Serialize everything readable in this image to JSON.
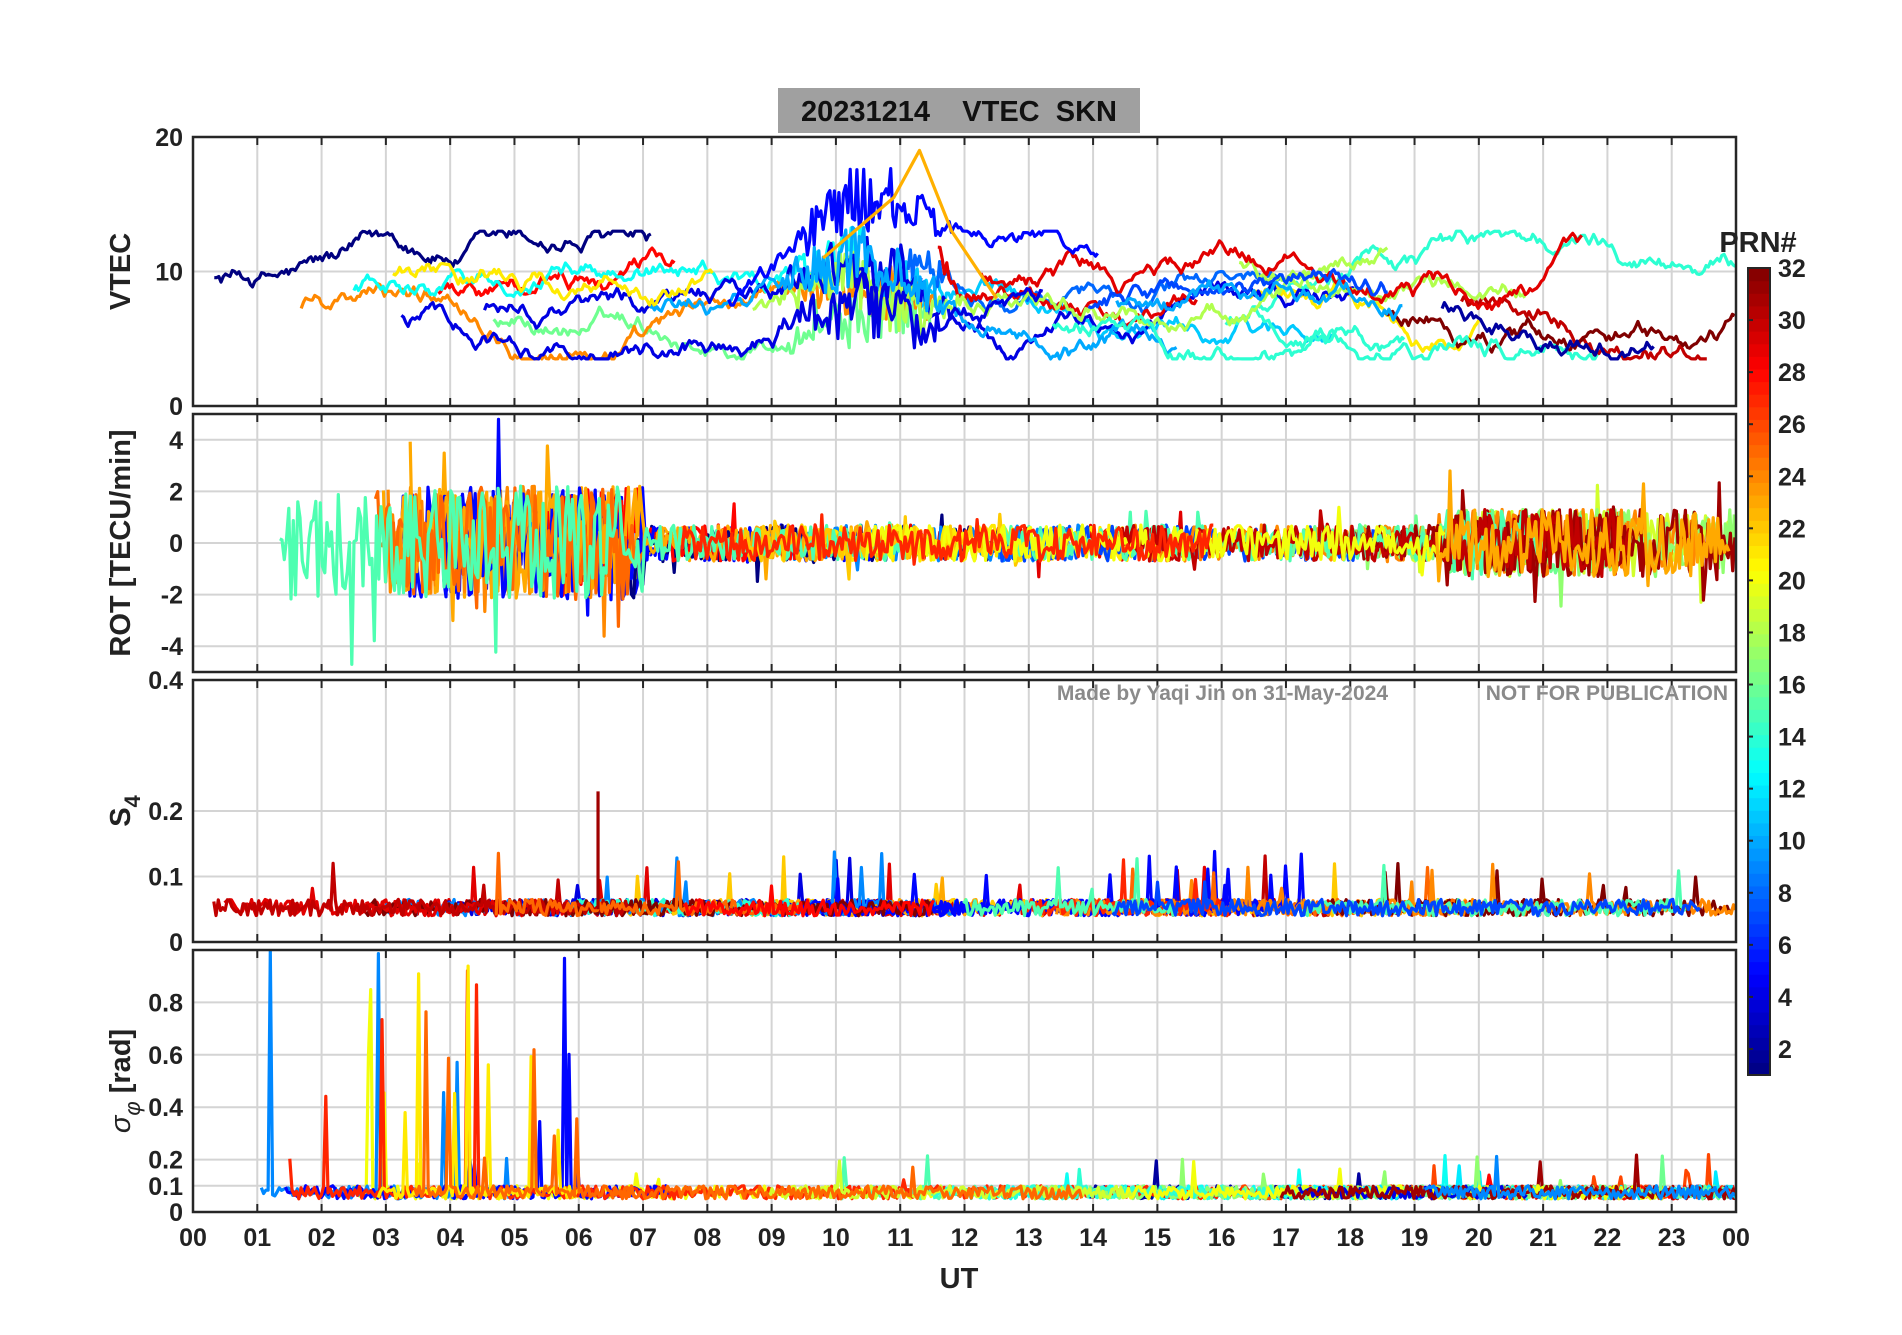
{
  "title": "20231214    VTEC  SKN",
  "watermark": {
    "left": "Made by Yaqi Jin on 31-May-2024",
    "right": "NOT FOR PUBLICATION"
  },
  "xlabel": "UT",
  "x_tick_labels": [
    "00",
    "01",
    "02",
    "03",
    "04",
    "05",
    "06",
    "07",
    "08",
    "09",
    "10",
    "11",
    "12",
    "13",
    "14",
    "15",
    "16",
    "17",
    "18",
    "19",
    "20",
    "21",
    "22",
    "23",
    "00"
  ],
  "colorbar": {
    "label": "PRN#",
    "range": [
      1,
      32
    ],
    "tick_labels": [
      "2",
      "4",
      "6",
      "8",
      "10",
      "12",
      "14",
      "16",
      "18",
      "20",
      "22",
      "24",
      "26",
      "28",
      "30",
      "32"
    ],
    "colormap": "jet"
  },
  "chart_data": [
    {
      "type": "line",
      "panel": "VTEC",
      "ylabel": "VTEC",
      "ylim": [
        0,
        20
      ],
      "y_tick_labels": [
        "0",
        "10",
        "20"
      ],
      "xlim_hours": [
        0,
        24
      ],
      "grid": true,
      "series_note_values": {
        "typical_range": [
          4,
          13
        ],
        "peak_value": 19,
        "peak_hour": 11.3
      }
    },
    {
      "type": "line",
      "panel": "ROT",
      "ylabel": "ROT [TECU/min]",
      "ylim": [
        -5,
        5
      ],
      "y_tick_labels": [
        "-4",
        "-2",
        "0",
        "2",
        "4"
      ],
      "xlim_hours": [
        0,
        24
      ],
      "grid": true,
      "series_note_values": {
        "max_spike": 4.8,
        "min_spike": -5
      }
    },
    {
      "type": "line",
      "panel": "S4",
      "ylabel_main": "S",
      "ylabel_sub": "4",
      "ylim": [
        0,
        0.4
      ],
      "y_tick_labels": [
        "0",
        "0.1",
        "0.2",
        "0.4"
      ],
      "xlim_hours": [
        0,
        24
      ],
      "grid": true,
      "series_note_values": {
        "baseline": 0.05,
        "max_spike": 0.23,
        "max_spike_hour": 6.3
      }
    },
    {
      "type": "line",
      "panel": "sigma_phi",
      "ylabel_main": "σ",
      "ylabel_sub": "φ",
      "ylabel_unit": "[rad]",
      "ylim": [
        0,
        1
      ],
      "y_tick_labels": [
        "0",
        "0.1",
        "0.2",
        "0.4",
        "0.6",
        "0.8"
      ],
      "xlim_hours": [
        0,
        24
      ],
      "grid": true,
      "series_note_values": {
        "baseline": 0.07,
        "max_spike": 1.0,
        "active_hours": [
          0.8,
          6.0
        ]
      }
    }
  ]
}
